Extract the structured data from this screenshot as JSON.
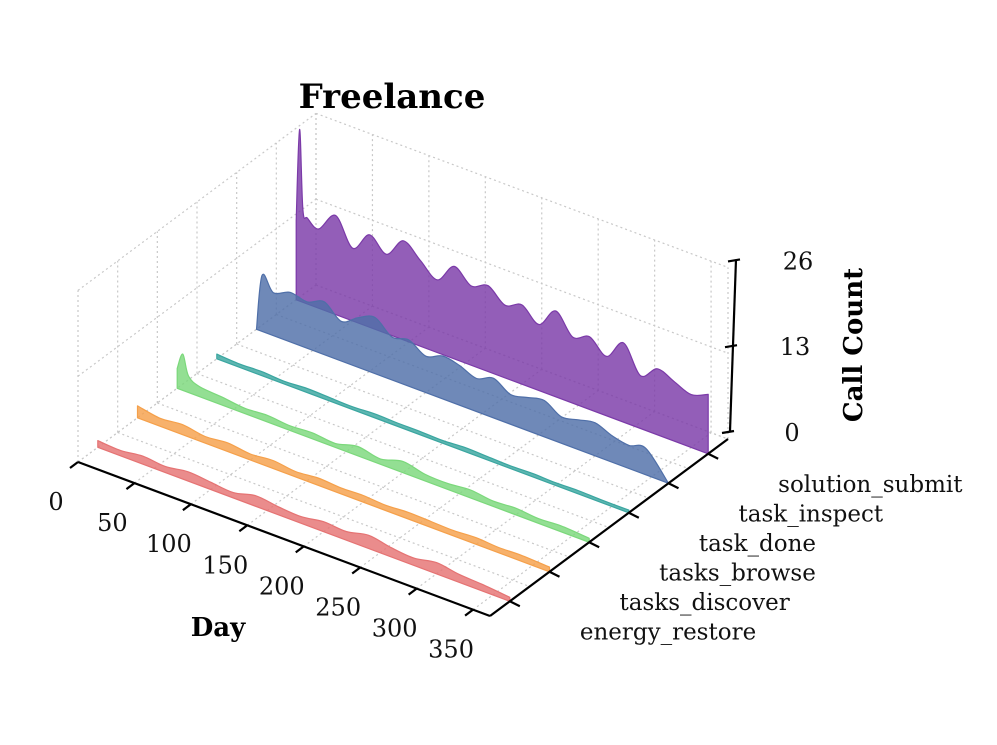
{
  "chart_data": {
    "type": "area",
    "subtype": "3d-ridgeline",
    "title": "Freelance",
    "xlabel": "Day",
    "ylabel": "",
    "zlabel": "Call Count",
    "xlim": [
      0,
      365
    ],
    "zlim": [
      0,
      26
    ],
    "x_ticks": [
      0,
      50,
      100,
      150,
      200,
      250,
      300,
      350
    ],
    "z_ticks": [
      0,
      13,
      26
    ],
    "grid": true,
    "categories": [
      "energy_restore",
      "tasks_discover",
      "tasks_browse",
      "task_done",
      "task_inspect",
      "solution_submit"
    ],
    "series": [
      {
        "name": "energy_restore",
        "color": "#e57373",
        "x": [
          0,
          20,
          40,
          60,
          80,
          100,
          120,
          140,
          160,
          180,
          200,
          220,
          240,
          260,
          280,
          300,
          320,
          340,
          365
        ],
        "values": [
          1.0,
          0.8,
          1.2,
          0.9,
          1.4,
          1.1,
          0.8,
          1.6,
          1.2,
          1.0,
          1.5,
          1.3,
          2.0,
          1.4,
          1.1,
          1.7,
          1.2,
          1.0,
          0.6
        ]
      },
      {
        "name": "tasks_discover",
        "color": "#f5a04a",
        "x": [
          0,
          20,
          40,
          60,
          80,
          100,
          120,
          140,
          160,
          180,
          200,
          220,
          240,
          260,
          280,
          300,
          320,
          340,
          365
        ],
        "values": [
          1.8,
          1.2,
          1.5,
          1.0,
          1.3,
          0.9,
          1.2,
          0.8,
          1.1,
          0.9,
          1.0,
          0.8,
          1.0,
          0.9,
          0.8,
          1.0,
          0.8,
          0.9,
          0.7
        ]
      },
      {
        "name": "tasks_browse",
        "color": "#7bd87b",
        "x": [
          0,
          5,
          10,
          20,
          40,
          60,
          80,
          100,
          120,
          140,
          160,
          180,
          200,
          220,
          240,
          260,
          280,
          300,
          320,
          340,
          365
        ],
        "values": [
          3.0,
          5.5,
          2.5,
          1.5,
          1.2,
          0.8,
          1.0,
          0.7,
          0.9,
          0.6,
          1.4,
          0.8,
          1.7,
          1.0,
          0.9,
          1.2,
          0.8,
          1.0,
          0.7,
          0.9,
          0.6
        ]
      },
      {
        "name": "task_done",
        "color": "#3aa6a0",
        "x": [
          0,
          20,
          40,
          60,
          80,
          100,
          120,
          140,
          160,
          180,
          200,
          220,
          240,
          260,
          280,
          300,
          320,
          340,
          365
        ],
        "values": [
          0.7,
          0.5,
          0.6,
          0.4,
          0.6,
          0.5,
          0.4,
          0.6,
          0.5,
          0.5,
          0.4,
          0.6,
          0.5,
          0.4,
          0.5,
          0.4,
          0.5,
          0.4,
          0.4
        ]
      },
      {
        "name": "task_inspect",
        "color": "#4f6fa8",
        "x": [
          0,
          5,
          15,
          30,
          45,
          60,
          75,
          90,
          105,
          120,
          135,
          150,
          165,
          180,
          195,
          210,
          225,
          240,
          255,
          270,
          285,
          300,
          315,
          330,
          345,
          365
        ],
        "values": [
          0,
          8.5,
          6.5,
          7.5,
          7.0,
          8.0,
          6.0,
          7.5,
          8.5,
          6.5,
          7.0,
          5.5,
          6.5,
          6.0,
          5.0,
          6.0,
          4.5,
          5.0,
          5.5,
          4.0,
          4.5,
          5.0,
          4.0,
          3.5,
          4.0,
          0
        ]
      },
      {
        "name": "solution_submit",
        "color": "#7b3aa8",
        "x": [
          0,
          3,
          6,
          10,
          20,
          35,
          50,
          65,
          80,
          95,
          110,
          125,
          140,
          155,
          170,
          185,
          200,
          215,
          230,
          245,
          260,
          275,
          290,
          305,
          320,
          335,
          350,
          365
        ],
        "values": [
          12,
          26,
          14,
          13,
          12,
          15,
          11,
          14,
          12,
          15,
          13,
          11,
          14,
          12,
          13,
          11,
          12,
          10,
          13,
          10,
          11,
          9,
          12,
          8,
          10,
          9,
          8,
          9
        ]
      }
    ]
  }
}
